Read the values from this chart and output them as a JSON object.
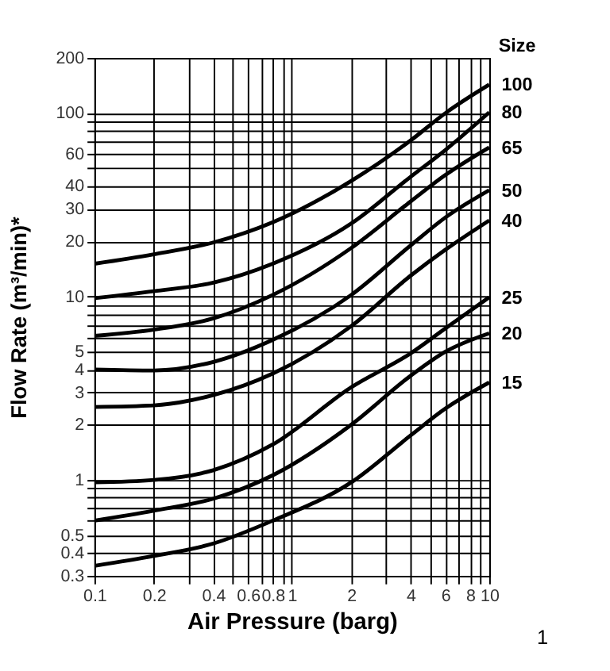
{
  "chart_data": {
    "type": "line",
    "xlabel": "Air Pressure (barg)",
    "ylabel": "Flow Rate (m³/min)*",
    "legend_title": "Size",
    "x": [
      0.1,
      0.2,
      0.4,
      0.8,
      2,
      4,
      6,
      10
    ],
    "series": [
      {
        "name": "100",
        "color": "#000000",
        "values": [
          15.1,
          17,
          19.7,
          25.4,
          42.7,
          71,
          100,
          143
        ]
      },
      {
        "name": "80",
        "color": "#000000",
        "values": [
          9.8,
          10.7,
          11.9,
          15.1,
          25,
          45,
          63,
          101
        ]
      },
      {
        "name": "65",
        "color": "#000000",
        "values": [
          6.1,
          6.6,
          7.6,
          10.2,
          18.4,
          33,
          46,
          65
        ]
      },
      {
        "name": "50",
        "color": "#000000",
        "values": [
          4.0,
          3.95,
          4.4,
          5.8,
          10.2,
          19,
          27,
          38
        ]
      },
      {
        "name": "40",
        "color": "#000000",
        "values": [
          2.5,
          2.55,
          2.9,
          3.8,
          6.9,
          13,
          18,
          26
        ]
      },
      {
        "name": "25",
        "color": "#000000",
        "values": [
          0.97,
          1.0,
          1.13,
          1.56,
          3.2,
          4.9,
          6.7,
          9.9
        ]
      },
      {
        "name": "20",
        "color": "#000000",
        "values": [
          0.6,
          0.68,
          0.79,
          1.06,
          2.0,
          3.7,
          5.0,
          6.3
        ]
      },
      {
        "name": "15",
        "color": "#000000",
        "values": [
          0.34,
          0.385,
          0.45,
          0.6,
          0.97,
          1.75,
          2.45,
          3.4
        ]
      }
    ],
    "log": "xy",
    "grid": true,
    "marker": "none",
    "line_style": "solid",
    "legend": false,
    "xlim": [
      0.1,
      10
    ],
    "ylim": [
      0.3,
      200
    ],
    "xticks": [
      0.1,
      0.2,
      {
        "value": 0.3,
        "label": null
      },
      0.4,
      {
        "value": 0.5,
        "label": null
      },
      0.6,
      {
        "value": 0.7,
        "label": null
      },
      0.8,
      {
        "value": 0.9,
        "label": null
      },
      1,
      2,
      {
        "value": 3,
        "label": null
      },
      4,
      {
        "value": 5,
        "label": null
      },
      6,
      {
        "value": 7,
        "label": null
      },
      8,
      {
        "value": 9,
        "label": null
      },
      10
    ],
    "yticks": [
      0.3,
      0.4,
      0.5,
      {
        "value": 0.6,
        "label": null
      },
      {
        "value": 0.7,
        "label": null
      },
      {
        "value": 0.8,
        "label": null
      },
      {
        "value": 0.9,
        "label": null
      },
      1,
      2,
      3,
      4,
      5,
      {
        "value": 6,
        "label": null
      },
      {
        "value": 7,
        "label": null
      },
      {
        "value": 8,
        "label": null
      },
      {
        "value": 9,
        "label": null
      },
      10,
      20,
      30,
      40,
      {
        "value": 50,
        "label": null
      },
      60,
      {
        "value": 70,
        "label": null
      },
      {
        "value": 80,
        "label": null
      },
      {
        "value": 90,
        "label": null
      },
      100,
      200
    ],
    "annotations": [
      "1"
    ]
  }
}
